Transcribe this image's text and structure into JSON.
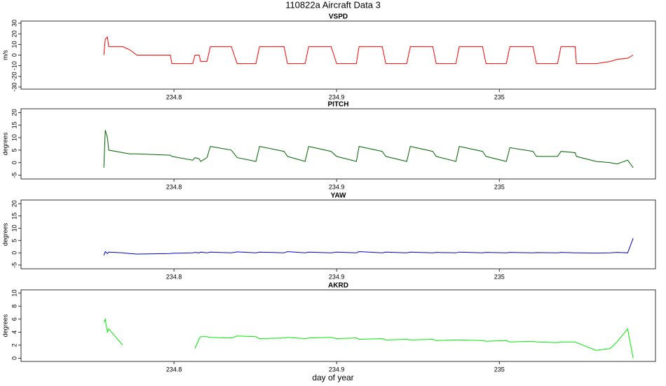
{
  "title": "110822a   Aircraft Data 3",
  "xlabel": "day of year",
  "chart_data": [
    {
      "type": "line",
      "title": "VSPD",
      "ylabel": "m/s",
      "color": "#ff0000",
      "x": [
        234.7569,
        234.7578,
        234.7591,
        234.7599,
        234.7685,
        234.7728,
        234.7772,
        234.7978,
        234.7987,
        234.8116,
        234.8129,
        234.8155,
        234.8164,
        234.8203,
        234.8224,
        234.8353,
        234.8388,
        234.8504,
        234.8526,
        234.8677,
        234.8698,
        234.8806,
        234.8828,
        234.8966,
        234.9,
        234.9121,
        234.9138,
        234.928,
        234.9302,
        234.9431,
        234.9453,
        234.9591,
        234.9612,
        234.9733,
        234.9754,
        234.9897,
        234.9918,
        235.0043,
        235.0065,
        235.0207,
        235.0228,
        235.0358,
        235.0379,
        235.0466,
        235.0474,
        235.0595,
        235.0681,
        235.0724,
        235.0789,
        235.0823
      ],
      "values": [
        0,
        15,
        17,
        8,
        8,
        5,
        0,
        0,
        -8,
        -8,
        0,
        0,
        -6,
        -6,
        8,
        8,
        -8,
        -8,
        8,
        8,
        -8,
        -8,
        8,
        8,
        -8,
        -8,
        8,
        8,
        -8,
        -8,
        8,
        8,
        -8,
        -8,
        8,
        8,
        -8,
        -8,
        8,
        8,
        -8,
        -8,
        8,
        8,
        -8,
        -8,
        -6,
        -4,
        -3,
        0
      ],
      "xlim": [
        234.706,
        235.096
      ],
      "xticks": [
        234.8,
        234.9,
        235.0
      ],
      "ylim": [
        -32,
        32
      ],
      "yticks": [
        -30,
        -20,
        -10,
        0,
        10,
        20,
        30
      ]
    },
    {
      "type": "line",
      "title": "PITCH",
      "ylabel": "degrees",
      "color": "#006400",
      "x": [
        234.7569,
        234.7578,
        234.7591,
        234.7599,
        234.7685,
        234.7728,
        234.7772,
        234.7978,
        234.7987,
        234.8116,
        234.8129,
        234.8155,
        234.8164,
        234.8203,
        234.8224,
        234.8353,
        234.8388,
        234.8504,
        234.8526,
        234.8677,
        234.8698,
        234.8806,
        234.8828,
        234.8966,
        234.9,
        234.9121,
        234.9138,
        234.928,
        234.9302,
        234.9431,
        234.9453,
        234.9591,
        234.9612,
        234.9733,
        234.9754,
        234.9897,
        234.9918,
        235.0043,
        235.0065,
        235.0207,
        235.0228,
        235.0358,
        235.0379,
        235.0466,
        235.0474,
        235.0595,
        235.0681,
        235.0724,
        235.0789,
        235.0823
      ],
      "values": [
        -2,
        13,
        10,
        5,
        4,
        3.5,
        3.5,
        3,
        2.5,
        1,
        2,
        1.5,
        0.5,
        2,
        6.5,
        5,
        2,
        0.5,
        6.5,
        4.5,
        2.5,
        0.5,
        6.5,
        4.5,
        2.5,
        0.5,
        6.5,
        4.5,
        2.5,
        0.5,
        6.5,
        4.5,
        2.5,
        0.5,
        6.5,
        4.5,
        2.5,
        0.5,
        6,
        4.5,
        2.5,
        2.5,
        4.5,
        4,
        2.5,
        0.5,
        0,
        -0.5,
        1,
        -2
      ],
      "xlim": [
        234.706,
        235.096
      ],
      "xticks": [
        234.8,
        234.9,
        235.0
      ],
      "ylim": [
        -6.5,
        21.5
      ],
      "yticks": [
        -5,
        0,
        5,
        10,
        15,
        20
      ]
    },
    {
      "type": "line",
      "title": "YAW",
      "ylabel": "degrees",
      "color": "#0000cd",
      "x": [
        234.7569,
        234.7578,
        234.7591,
        234.7599,
        234.7685,
        234.7728,
        234.7772,
        234.7978,
        234.7987,
        234.8116,
        234.8129,
        234.8155,
        234.8164,
        234.8203,
        234.8224,
        234.8353,
        234.8388,
        234.8504,
        234.8526,
        234.8677,
        234.8698,
        234.8806,
        234.8828,
        234.8966,
        234.9,
        234.9121,
        234.9138,
        234.928,
        234.9302,
        234.9431,
        234.9453,
        234.9591,
        234.9612,
        234.9733,
        234.9754,
        234.9897,
        234.9918,
        235.0043,
        235.0065,
        235.0207,
        235.0228,
        235.0358,
        235.0379,
        235.0466,
        235.0474,
        235.0595,
        235.0681,
        235.0724,
        235.0789,
        235.0823
      ],
      "values": [
        -1,
        0.5,
        -0.3,
        0.3,
        0,
        -0.3,
        -0.5,
        -0.3,
        -0.2,
        0,
        0.2,
        0,
        0.3,
        0,
        0.3,
        0,
        0.4,
        0,
        0.3,
        0,
        0.5,
        0,
        0.3,
        0,
        0.3,
        0,
        0.5,
        0,
        0.3,
        0,
        0.3,
        0,
        0.2,
        0,
        0.3,
        0,
        0.2,
        0,
        0.2,
        0,
        0.1,
        0,
        0.2,
        0,
        0,
        -0.1,
        0,
        0.2,
        0,
        6
      ],
      "xlim": [
        234.706,
        235.096
      ],
      "xticks": [
        234.8,
        234.9,
        235.0
      ],
      "ylim": [
        -6.5,
        21.5
      ],
      "yticks": [
        -5,
        0,
        5,
        10,
        15,
        20
      ]
    },
    {
      "type": "line",
      "title": "AKRD",
      "ylabel": "degrees",
      "color": "#00ee00",
      "x": [
        234.7569,
        234.7578,
        234.7591,
        234.7599,
        234.7685,
        234.7728,
        234.7772,
        234.7978,
        234.7987,
        234.8116,
        234.8129,
        234.8155,
        234.8164,
        234.8203,
        234.8224,
        234.8353,
        234.8388,
        234.8504,
        234.8526,
        234.8677,
        234.8698,
        234.8806,
        234.8828,
        234.8966,
        234.9,
        234.9121,
        234.9138,
        234.928,
        234.9302,
        234.9431,
        234.9453,
        234.9591,
        234.9612,
        234.9733,
        234.9754,
        234.9897,
        234.9918,
        235.0043,
        235.0065,
        235.0207,
        235.0228,
        235.0358,
        235.0379,
        235.0466,
        235.0474,
        235.0595,
        235.0681,
        235.0724,
        235.0789,
        235.0823
      ],
      "values": [
        5.5,
        6,
        4,
        4.5,
        2,
        null,
        null,
        null,
        null,
        null,
        1.5,
        3,
        3.3,
        3.3,
        3.2,
        3.1,
        3.4,
        3.3,
        3,
        3.1,
        3.2,
        3,
        3.1,
        3.2,
        3,
        3.1,
        2.9,
        3,
        2.8,
        2.9,
        2.8,
        2.9,
        2.7,
        2.8,
        2.8,
        2.7,
        2.6,
        2.7,
        2.5,
        2.6,
        2.5,
        2.4,
        2.5,
        2.5,
        2.4,
        1.2,
        1.5,
        2.5,
        4.5,
        0
      ],
      "xlim": [
        234.706,
        235.096
      ],
      "xticks": [
        234.8,
        234.9,
        235.0
      ],
      "ylim": [
        -0.5,
        10.5
      ],
      "yticks": [
        0,
        2,
        4,
        6,
        8,
        10
      ]
    }
  ]
}
